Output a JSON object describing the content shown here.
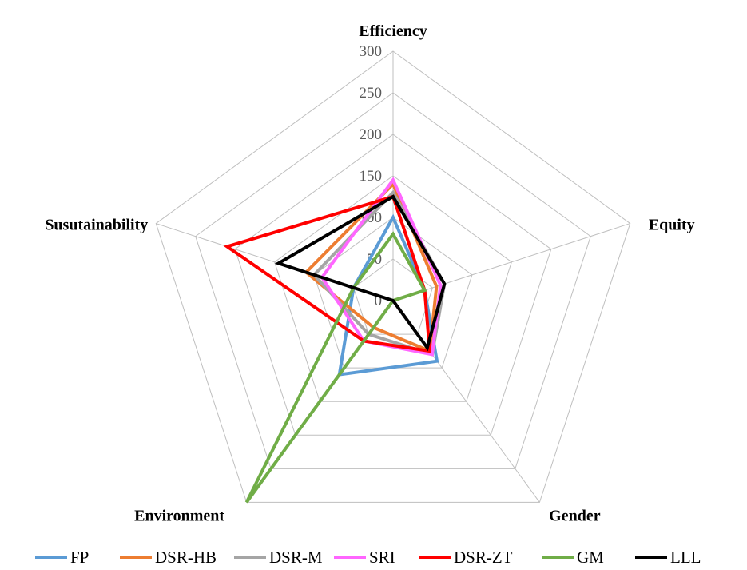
{
  "chart_data": {
    "type": "radar",
    "axes": [
      "Efficiency",
      "Equity",
      "Gender",
      "Environment",
      "Susutainability"
    ],
    "rmax": 300,
    "ticks": [
      0,
      50,
      100,
      150,
      200,
      250,
      300
    ],
    "series": [
      {
        "name": "FP",
        "color": "#5b9bd5",
        "values": [
          100,
          40,
          90,
          110,
          50
        ]
      },
      {
        "name": "DSR-HB",
        "color": "#ed7d31",
        "values": [
          140,
          55,
          75,
          40,
          110
        ]
      },
      {
        "name": "DSR-M",
        "color": "#a5a5a5",
        "values": [
          130,
          65,
          80,
          50,
          100
        ]
      },
      {
        "name": "SRI",
        "color": "#ff66ff",
        "values": [
          145,
          60,
          80,
          60,
          90
        ]
      },
      {
        "name": "DSR-ZT",
        "color": "#ff0000",
        "values": [
          125,
          40,
          75,
          60,
          210
        ]
      },
      {
        "name": "GM",
        "color": "#70ad47",
        "values": [
          80,
          40,
          0,
          300,
          50
        ]
      },
      {
        "name": "LLL",
        "color": "#000000",
        "values": [
          125,
          65,
          70,
          0,
          145
        ]
      }
    ],
    "legend_position": "bottom"
  }
}
